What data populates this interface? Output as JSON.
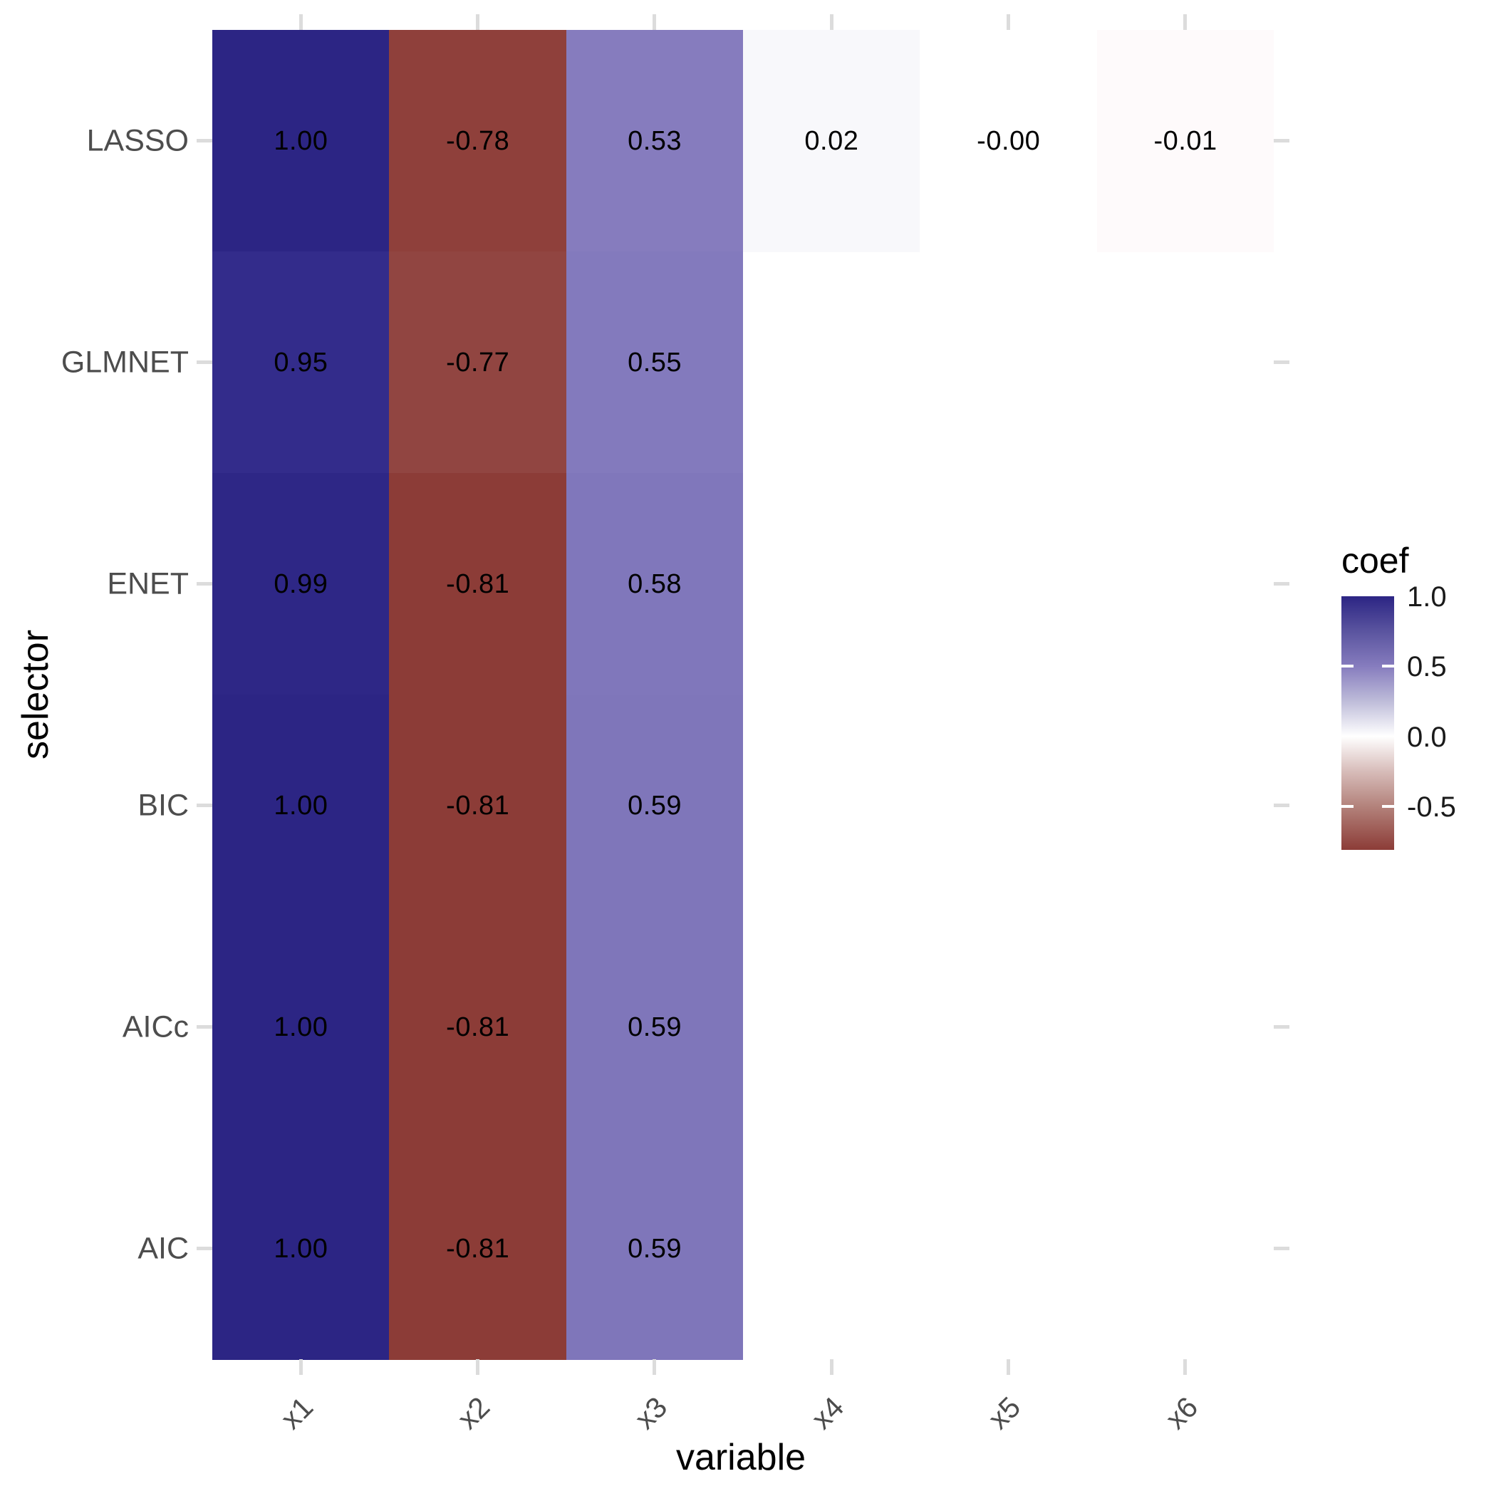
{
  "figure": {
    "background": "#FFFFFF",
    "axis_tick_color": "#DCDCDC",
    "axis_text_color": "#4D4D4D",
    "axis_title_color": "#000000",
    "cell_label_color": "#000000"
  },
  "chart_data": {
    "type": "heatmap",
    "title": "",
    "xlabel": "variable",
    "ylabel": "selector",
    "x_categories": [
      "x1",
      "x2",
      "x3",
      "x4",
      "x5",
      "x6"
    ],
    "y_categories_top_to_bottom": [
      "LASSO",
      "GLMNET",
      "ENET",
      "BIC",
      "AICc",
      "AIC"
    ],
    "fill_variable": "coef",
    "fill_range": [
      -0.81,
      1.0
    ],
    "grid": "off",
    "rows": [
      {
        "selector": "LASSO",
        "cells": [
          {
            "variable": "x1",
            "value": 1.0,
            "label": "1.00",
            "fill": "#2C2584"
          },
          {
            "variable": "x2",
            "value": -0.78,
            "label": "-0.78",
            "fill": "#8F403B"
          },
          {
            "variable": "x3",
            "value": 0.53,
            "label": "0.53",
            "fill": "#867CBE"
          },
          {
            "variable": "x4",
            "value": 0.02,
            "label": "0.02",
            "fill": "#F8F8FB"
          },
          {
            "variable": "x5",
            "value": -0.0,
            "label": "-0.00",
            "fill": "#FFFFFF"
          },
          {
            "variable": "x6",
            "value": -0.01,
            "label": "-0.01",
            "fill": "#FEFAFB"
          }
        ]
      },
      {
        "selector": "GLMNET",
        "cells": [
          {
            "variable": "x1",
            "value": 0.95,
            "label": "0.95",
            "fill": "#332C8B"
          },
          {
            "variable": "x2",
            "value": -0.77,
            "label": "-0.77",
            "fill": "#914541"
          },
          {
            "variable": "x3",
            "value": 0.55,
            "label": "0.55",
            "fill": "#837ABD"
          }
        ]
      },
      {
        "selector": "ENET",
        "cells": [
          {
            "variable": "x1",
            "value": 0.99,
            "label": "0.99",
            "fill": "#2E2786"
          },
          {
            "variable": "x2",
            "value": -0.81,
            "label": "-0.81",
            "fill": "#8C3C37"
          },
          {
            "variable": "x3",
            "value": 0.58,
            "label": "0.58",
            "fill": "#8077BB"
          }
        ]
      },
      {
        "selector": "BIC",
        "cells": [
          {
            "variable": "x1",
            "value": 1.0,
            "label": "1.00",
            "fill": "#2C2584"
          },
          {
            "variable": "x2",
            "value": -0.81,
            "label": "-0.81",
            "fill": "#8C3C37"
          },
          {
            "variable": "x3",
            "value": 0.59,
            "label": "0.59",
            "fill": "#7F76BA"
          }
        ]
      },
      {
        "selector": "AICc",
        "cells": [
          {
            "variable": "x1",
            "value": 1.0,
            "label": "1.00",
            "fill": "#2C2584"
          },
          {
            "variable": "x2",
            "value": -0.81,
            "label": "-0.81",
            "fill": "#8C3C37"
          },
          {
            "variable": "x3",
            "value": 0.59,
            "label": "0.59",
            "fill": "#7F76BA"
          }
        ]
      },
      {
        "selector": "AIC",
        "cells": [
          {
            "variable": "x1",
            "value": 1.0,
            "label": "1.00",
            "fill": "#2C2584"
          },
          {
            "variable": "x2",
            "value": -0.81,
            "label": "-0.81",
            "fill": "#8C3C37"
          },
          {
            "variable": "x3",
            "value": 0.59,
            "label": "0.59",
            "fill": "#7F76BA"
          }
        ]
      }
    ],
    "legend": {
      "title": "coef",
      "position": "right",
      "tick_labels": [
        "1.0",
        "0.5",
        "0.0",
        "-0.5"
      ],
      "tick_values": [
        1.0,
        0.5,
        0.0,
        -0.5
      ],
      "bar_tick_values": [
        0.5,
        -0.5
      ],
      "gradient_stops": [
        {
          "value": 1.0,
          "color": "#2C2584"
        },
        {
          "value": 0.75,
          "color": "#5A549F"
        },
        {
          "value": 0.5,
          "color": "#867CBE"
        },
        {
          "value": 0.25,
          "color": "#BEBCD9"
        },
        {
          "value": 0.0,
          "color": "#FFFFFF"
        },
        {
          "value": -0.25,
          "color": "#D7BCB9"
        },
        {
          "value": -0.5,
          "color": "#B3827B"
        },
        {
          "value": -0.81,
          "color": "#8C3C37"
        }
      ]
    }
  }
}
